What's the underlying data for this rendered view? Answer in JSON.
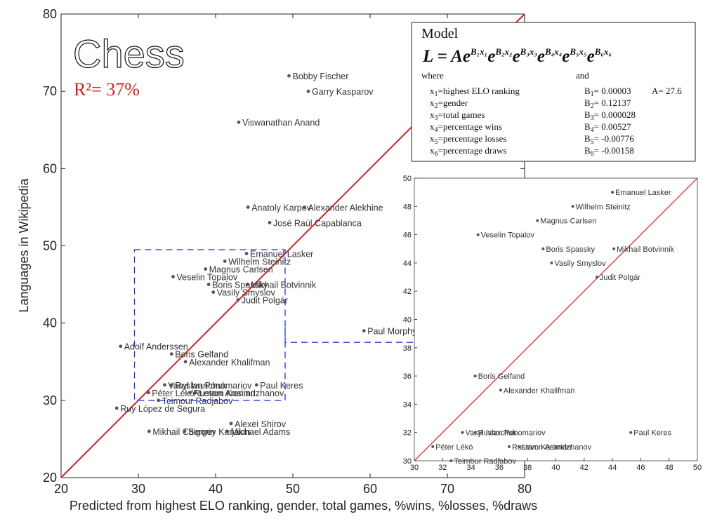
{
  "chart_data": [
    {
      "type": "scatter",
      "title": "Chess",
      "annotation": "R²= 37%",
      "xlabel": "Predicted from highest ELO ranking, gender, total games, %wins, %losses, %draws",
      "ylabel": "Languages in Wikipedia",
      "xlim": [
        20,
        80
      ],
      "ylim": [
        20,
        80
      ],
      "xticks": [
        "20",
        "30",
        "40",
        "50",
        "60",
        "70",
        "80"
      ],
      "yticks": [
        "20",
        "30",
        "40",
        "50",
        "60",
        "70",
        "80"
      ],
      "reference_line": "y = x",
      "grid": false,
      "points": [
        {
          "label": "Bobby Fischer",
          "x": 49.5,
          "y": 72
        },
        {
          "label": "Garry Kasparov",
          "x": 52,
          "y": 70
        },
        {
          "label": "Viswanathan Anand",
          "x": 43,
          "y": 66
        },
        {
          "label": "Anatoly Karpov",
          "x": 44.2,
          "y": 55
        },
        {
          "label": "Alexander Alekhine",
          "x": 51.5,
          "y": 55
        },
        {
          "label": "José Raúl Capablanca",
          "x": 47,
          "y": 53
        },
        {
          "label": "Emanuel Lasker",
          "x": 44,
          "y": 49
        },
        {
          "label": "Wilhelm Steinitz",
          "x": 41.2,
          "y": 48
        },
        {
          "label": "Magnus Carlsen",
          "x": 38.7,
          "y": 47
        },
        {
          "label": "Veselin Topalov",
          "x": 34.5,
          "y": 46
        },
        {
          "label": "Mikhail Botvinnik",
          "x": 44.1,
          "y": 45
        },
        {
          "label": "Boris Spassky",
          "x": 39.1,
          "y": 45
        },
        {
          "label": "Vasily Smyslov",
          "x": 39.7,
          "y": 44
        },
        {
          "label": "Judit Polgár",
          "x": 42.9,
          "y": 43
        },
        {
          "label": "Paul Morphy",
          "x": 59.2,
          "y": 39
        },
        {
          "label": "Adolf Anderssen",
          "x": 27.7,
          "y": 37
        },
        {
          "label": "Boris Gelfand",
          "x": 34.3,
          "y": 36
        },
        {
          "label": "Alexander Khalifman",
          "x": 36.1,
          "y": 35
        },
        {
          "label": "Vasyl Ivanchuk",
          "x": 33.4,
          "y": 32
        },
        {
          "label": "Ruslan Ponomariov",
          "x": 34.3,
          "y": 32
        },
        {
          "label": "Paul Keres",
          "x": 45.3,
          "y": 32
        },
        {
          "label": "Péter Lékó",
          "x": 31.3,
          "y": 31
        },
        {
          "label": "Levon Aronian",
          "x": 37.4,
          "y": 31
        },
        {
          "label": "Rustam Kasimdzhanov",
          "x": 36.7,
          "y": 31
        },
        {
          "label": "Teimour Radjabov",
          "x": 32.6,
          "y": 30
        },
        {
          "label": "Ruy López de Segura",
          "x": 27.2,
          "y": 29
        },
        {
          "label": "Alexei Shirov",
          "x": 42,
          "y": 27
        },
        {
          "label": "Mikhail Chigorin",
          "x": 31.4,
          "y": 26
        },
        {
          "label": "Michael Adams",
          "x": 41.5,
          "y": 26
        },
        {
          "label": "Sergey Karjakin",
          "x": 36,
          "y": 26
        }
      ]
    },
    {
      "type": "scatter",
      "title": "",
      "xlim": [
        30,
        50
      ],
      "ylim": [
        30,
        50
      ],
      "xticks": [
        "30",
        "32",
        "34",
        "36",
        "38",
        "40",
        "42",
        "44",
        "46",
        "48",
        "50"
      ],
      "yticks": [
        "30",
        "32",
        "34",
        "36",
        "38",
        "40",
        "42",
        "44",
        "46",
        "48",
        "50"
      ],
      "reference_line": "y = x",
      "grid": false,
      "points": [
        {
          "label": "Emanuel Lasker",
          "x": 44,
          "y": 49
        },
        {
          "label": "Wilhelm Steinitz",
          "x": 41.2,
          "y": 48
        },
        {
          "label": "Magnus Carlsen",
          "x": 38.7,
          "y": 47
        },
        {
          "label": "Veselin Topalov",
          "x": 34.5,
          "y": 46
        },
        {
          "label": "Boris Spassky",
          "x": 39.1,
          "y": 45
        },
        {
          "label": "Mikhail Botvinnik",
          "x": 44.1,
          "y": 45
        },
        {
          "label": "Vasily Smyslov",
          "x": 39.7,
          "y": 44
        },
        {
          "label": "Judit Polgár",
          "x": 42.9,
          "y": 43
        },
        {
          "label": "Boris Gelfand",
          "x": 34.3,
          "y": 36
        },
        {
          "label": "Alexander Khalifman",
          "x": 36.1,
          "y": 35
        },
        {
          "label": "Vasyl Ivanchuk",
          "x": 33.4,
          "y": 32
        },
        {
          "label": "Ruslan Ponomariov",
          "x": 34.3,
          "y": 32
        },
        {
          "label": "Paul Keres",
          "x": 45.3,
          "y": 32
        },
        {
          "label": "Rustam Kasimdzhanov",
          "x": 36.7,
          "y": 31
        },
        {
          "label": "Levon Aronian",
          "x": 37.4,
          "y": 31
        },
        {
          "label": "Péter Lékó",
          "x": 31.3,
          "y": 31
        },
        {
          "label": "Teimour Radjabov",
          "x": 32.6,
          "y": 30
        }
      ]
    }
  ],
  "zoom_region": {
    "x": [
      29.5,
      49
    ],
    "y": [
      30,
      49.5
    ]
  },
  "colors": {
    "fit_line_main": "#d42020",
    "fit_line_inset": "#d42020",
    "zoom_box": "#1f35d6",
    "point": "#555555"
  },
  "model": {
    "heading": "Model",
    "equation": "L = Ae^{B1x1}e^{B2x2}e^{B3x3}e^{B4x4}e^{B5x5}e^{B6x6}",
    "where": "where",
    "and": "and",
    "variables": [
      {
        "sub": "1",
        "text": "=highest ELO ranking"
      },
      {
        "sub": "2",
        "text": "=gender"
      },
      {
        "sub": "3",
        "text": "=total games"
      },
      {
        "sub": "4",
        "text": "=percentage wins"
      },
      {
        "sub": "5",
        "text": "=percentage losses"
      },
      {
        "sub": "6",
        "text": "=percentage draws"
      }
    ],
    "coefficients": [
      {
        "sub": "1",
        "text": "= 0.00003"
      },
      {
        "sub": "2",
        "text": "= 0.12137"
      },
      {
        "sub": "3",
        "text": "= 0.000028"
      },
      {
        "sub": "4",
        "text": "= 0.00527"
      },
      {
        "sub": "5",
        "text": "= -0.00776"
      },
      {
        "sub": "6",
        "text": "= -0.00158"
      }
    ],
    "constant": "A= 27.6"
  }
}
